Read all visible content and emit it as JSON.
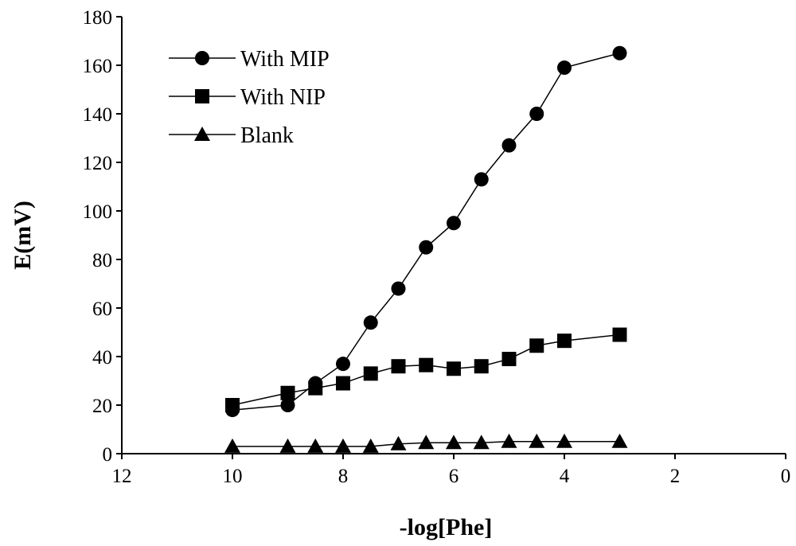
{
  "chart_data": {
    "type": "line",
    "xlabel": "-log[Phe]",
    "ylabel": "E(mV)",
    "xlim": [
      12,
      0
    ],
    "ylim": [
      0,
      180
    ],
    "x_reversed": true,
    "xticks": [
      12,
      10,
      8,
      6,
      4,
      2,
      0
    ],
    "yticks": [
      0,
      20,
      40,
      60,
      80,
      100,
      120,
      140,
      160,
      180
    ],
    "grid": false,
    "legend_position": "top-left",
    "series": [
      {
        "name": "With MIP",
        "marker": "circle",
        "color": "#000000",
        "x": [
          10,
          9,
          8.5,
          8,
          7.5,
          7,
          6.5,
          6,
          5.5,
          5,
          4.5,
          4,
          3
        ],
        "y": [
          18,
          20,
          29,
          37,
          54,
          68,
          85,
          95,
          113,
          127,
          140,
          159,
          165
        ]
      },
      {
        "name": "With NIP",
        "marker": "square",
        "color": "#000000",
        "x": [
          10,
          9,
          8.5,
          8,
          7.5,
          7,
          6.5,
          6,
          5.5,
          5,
          4.5,
          4,
          3
        ],
        "y": [
          20,
          25,
          27,
          29,
          33,
          36,
          36.5,
          35,
          36,
          39,
          44.5,
          46.5,
          49
        ]
      },
      {
        "name": "Blank",
        "marker": "triangle",
        "color": "#000000",
        "x": [
          10,
          9,
          8.5,
          8,
          7.5,
          7,
          6.5,
          6,
          5.5,
          5,
          4.5,
          4,
          3
        ],
        "y": [
          3,
          3,
          3,
          3,
          3,
          4,
          4.5,
          4.5,
          4.5,
          5,
          5,
          5,
          5
        ]
      }
    ]
  }
}
